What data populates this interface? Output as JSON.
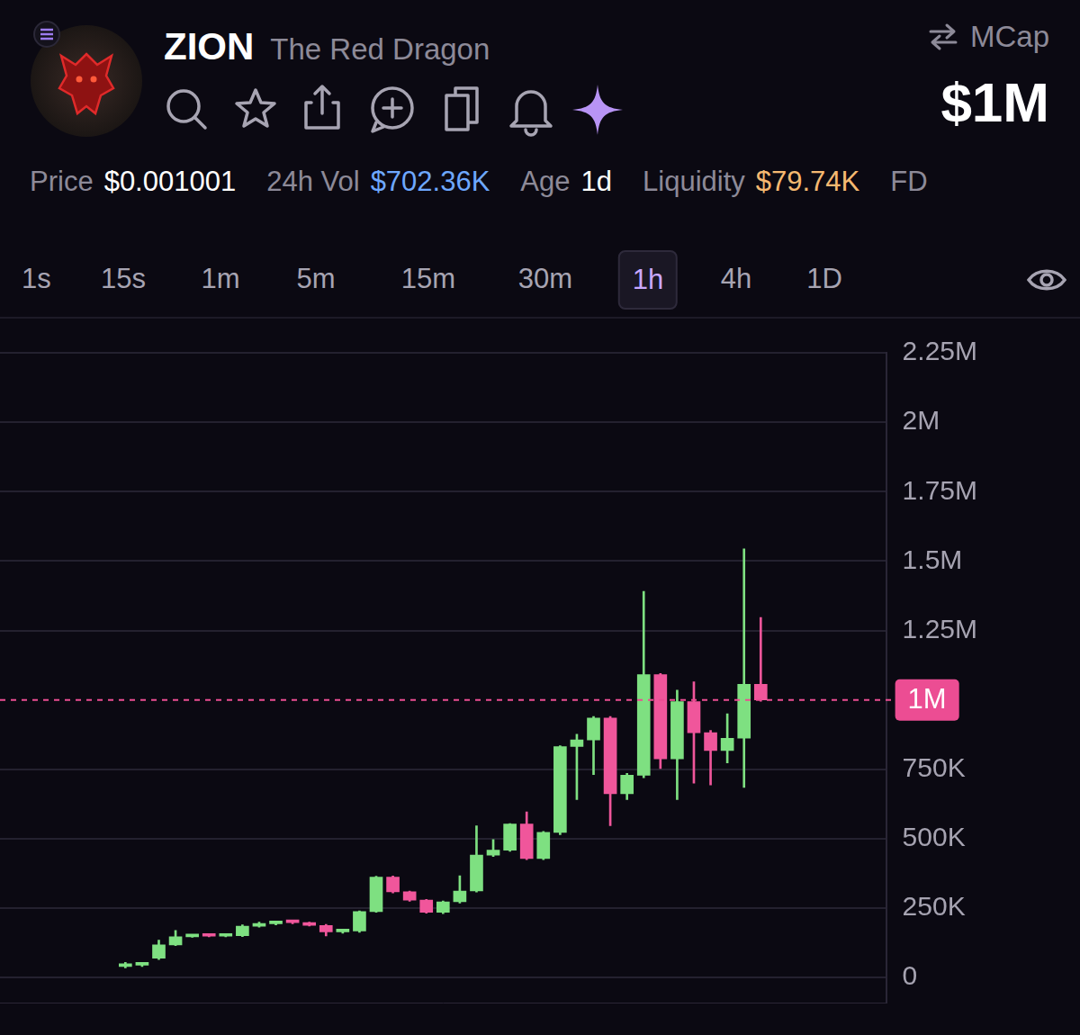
{
  "header": {
    "symbol": "ZION",
    "name": "The Red Dragon",
    "mcap_label": "MCap",
    "mcap": "$1M",
    "stats": [
      {
        "label": "Price",
        "value": "$0.001001"
      },
      {
        "label": "24h Vol",
        "value": "$702.36K"
      },
      {
        "label": "Age",
        "value": "1d"
      },
      {
        "label": "Liquidity",
        "value": "$79.74K"
      },
      {
        "label": "FD"
      }
    ]
  },
  "timeframes": {
    "options": [
      "1s",
      "15s",
      "1m",
      "5m",
      "15m",
      "30m",
      "1h",
      "4h",
      "1D"
    ],
    "selected": "1h"
  },
  "chart_data": {
    "type": "candlestick",
    "categories": [
      null,
      null,
      null,
      null,
      null,
      null,
      null,
      null,
      null,
      null,
      null,
      null,
      null,
      null,
      null,
      null,
      null,
      null,
      null,
      null,
      null,
      null,
      null,
      null,
      null,
      null,
      null,
      null,
      null,
      null,
      null,
      null,
      null,
      null,
      null,
      null,
      null,
      null,
      null,
      null,
      null,
      null,
      null,
      null,
      null,
      null,
      null,
      null,
      null,
      null,
      null,
      null,
      null
    ],
    "open": [
      null,
      null,
      null,
      null,
      null,
      null,
      null,
      40000,
      45000,
      70000,
      118000,
      147000,
      150000,
      149000,
      151000,
      185000,
      194000,
      200000,
      198000,
      188000,
      165000,
      168000,
      238000,
      362000,
      309000,
      279000,
      235000,
      273000,
      312000,
      441000,
      459000,
      553000,
      429000,
      523000,
      832000,
      856000,
      935000,
      662000,
      729000,
      1091000,
      788000,
      994000,
      882000,
      818000,
      862000,
      1056000,
      null,
      null,
      null,
      null,
      null,
      null,
      null
    ],
    "high": [
      null,
      null,
      null,
      null,
      null,
      null,
      null,
      55000,
      52000,
      135000,
      170000,
      152000,
      152000,
      153000,
      190000,
      200000,
      202000,
      203000,
      200000,
      192000,
      172000,
      240000,
      365000,
      366000,
      312000,
      282000,
      276000,
      367000,
      547000,
      497000,
      555000,
      597000,
      526000,
      835000,
      876000,
      940000,
      940000,
      735000,
      1391000,
      1095000,
      1035000,
      1065000,
      890000,
      950000,
      1544000,
      1297000,
      null,
      null,
      null,
      null,
      null,
      null,
      null
    ],
    "low": [
      null,
      null,
      null,
      null,
      null,
      null,
      null,
      35000,
      40000,
      65000,
      115000,
      145000,
      147000,
      147000,
      148000,
      182000,
      190000,
      194000,
      186000,
      150000,
      160000,
      163000,
      235000,
      305000,
      275000,
      232000,
      230000,
      268000,
      308000,
      436000,
      455000,
      425000,
      425000,
      515000,
      641000,
      731000,
      547000,
      641000,
      720000,
      753000,
      641000,
      700000,
      694000,
      773000,
      685000,
      995000,
      null,
      null,
      null,
      null,
      null,
      null,
      null
    ],
    "close": [
      null,
      null,
      null,
      null,
      null,
      null,
      null,
      50000,
      50000,
      118000,
      147000,
      150000,
      149000,
      151000,
      185000,
      194000,
      200000,
      198000,
      188000,
      165000,
      170000,
      238000,
      362000,
      309000,
      279000,
      235000,
      273000,
      312000,
      441000,
      459000,
      553000,
      429000,
      523000,
      832000,
      856000,
      935000,
      662000,
      729000,
      1091000,
      788000,
      994000,
      882000,
      818000,
      862000,
      1056000,
      1000000,
      null,
      null,
      null,
      null,
      null,
      null,
      null
    ],
    "colors": [
      null,
      null,
      null,
      null,
      null,
      null,
      null,
      "#7ee081",
      "#7ee081",
      "#7ee081",
      "#7ee081",
      "#7ee081",
      "#f0569b",
      "#7ee081",
      "#7ee081",
      "#7ee081",
      "#7ee081",
      "#f0569b",
      "#f0569b",
      "#f0569b",
      "#7ee081",
      "#7ee081",
      "#7ee081",
      "#f0569b",
      "#f0569b",
      "#f0569b",
      "#7ee081",
      "#7ee081",
      "#7ee081",
      "#7ee081",
      "#7ee081",
      "#f0569b",
      "#7ee081",
      "#7ee081",
      "#7ee081",
      "#7ee081",
      "#f0569b",
      "#7ee081",
      "#7ee081",
      "#f0569b",
      "#7ee081",
      "#f0569b",
      "#f0569b",
      "#7ee081",
      "#7ee081",
      "#f0569b",
      null,
      null,
      null,
      null,
      null,
      null,
      null
    ],
    "ylim": [
      -90000,
      2250000
    ],
    "yticks": [
      0,
      {
        "value": 250000,
        "label": "250K"
      },
      {
        "value": 500000,
        "label": "500K"
      },
      {
        "value": 750000,
        "label": "750K"
      },
      {
        "value": 1250000,
        "label": "1.25M"
      },
      {
        "value": 1500000,
        "label": "1.5M"
      },
      {
        "value": 1750000,
        "label": "1.75M"
      },
      {
        "value": 2000000,
        "label": "2M"
      },
      {
        "value": 2250000,
        "label": "2.25M"
      }
    ],
    "price_line": {
      "value": 1000000,
      "label": "1M",
      "color": "#ec4d93"
    },
    "grid": true,
    "tick_labels": "y"
  }
}
